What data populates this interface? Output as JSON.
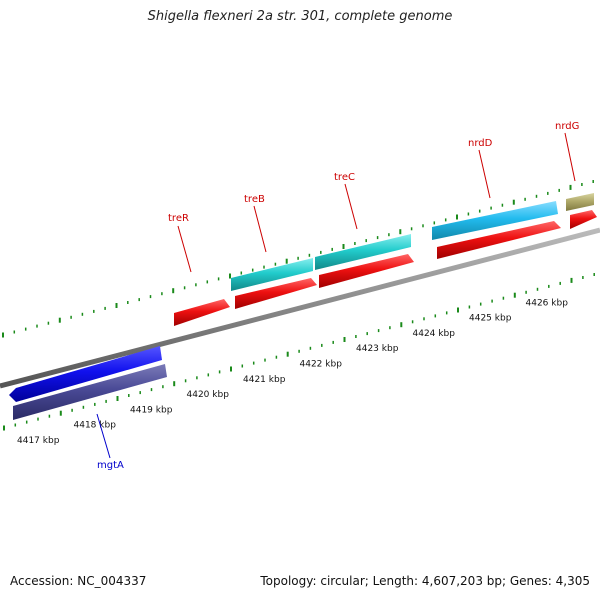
{
  "title": "Shigella flexneri 2a str. 301, complete genome",
  "accession": "Accession: NC_004337",
  "summary": "Topology: circular; Length: 4,607,203 bp; Genes: 4,305",
  "kbp_labels": [
    "4417 kbp",
    "4418 kbp",
    "4419 kbp",
    "4420 kbp",
    "4421 kbp",
    "4422 kbp",
    "4423 kbp",
    "4424 kbp",
    "4425 kbp",
    "4426 kbp"
  ],
  "genes": [
    {
      "name": "mgtA",
      "color": "#0000cc"
    },
    {
      "name": "treR",
      "color": "#cc0000"
    },
    {
      "name": "treB",
      "color": "#cc0000"
    },
    {
      "name": "treC",
      "color": "#cc0000"
    },
    {
      "name": "nrdD",
      "color": "#cc0000"
    },
    {
      "name": "nrdG",
      "color": "#cc0000"
    }
  ],
  "colors": {
    "backbone": "#888888",
    "tick": "#1a8a1a",
    "cds_red": "#ee1111",
    "gene_blue": "#1111ee",
    "cds_purple": "#4a4a96",
    "gene_cyan": "#22cccc",
    "gene_skyblue": "#22bbee",
    "gene_olive": "#b0aa6a"
  }
}
